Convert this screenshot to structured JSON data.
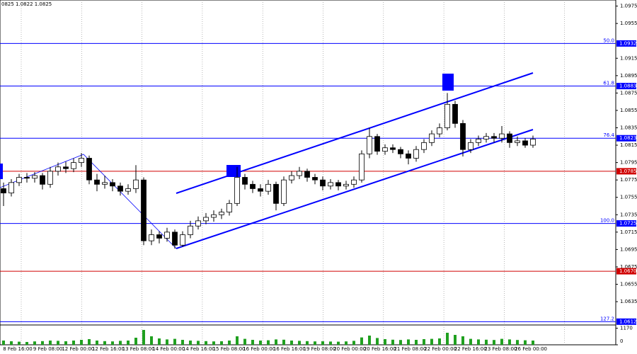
{
  "chart_data": {
    "type": "candlestick",
    "header": "0825 1.0822 1.0825",
    "ylim": [
      1.0609,
      1.0982
    ],
    "yticks": [
      1.0975,
      1.0955,
      1.0915,
      1.0895,
      1.0875,
      1.0855,
      1.0835,
      1.0815,
      1.0795,
      1.0775,
      1.0755,
      1.0735,
      1.0715,
      1.0695,
      1.0675,
      1.0655,
      1.0635
    ],
    "x_labels": [
      "8 Feb 16:00",
      "9 Feb 08:00",
      "12 Feb 00:00",
      "12 Feb 16:00",
      "13 Feb 08:00",
      "14 Feb 00:00",
      "14 Feb 16:00",
      "15 Feb 08:00",
      "16 Feb 00:00",
      "16 Feb 16:00",
      "19 Feb 08:00",
      "20 Feb 00:00",
      "20 Feb 16:00",
      "21 Feb 08:00",
      "22 Feb 00:00",
      "22 Feb 16:00",
      "23 Feb 08:00",
      "26 Feb 00:00"
    ],
    "levels": [
      {
        "ratio": "50.0",
        "price": 1.0932,
        "color": "#0000ff"
      },
      {
        "ratio": "61.8",
        "price": 1.0883,
        "color": "#0000ff"
      },
      {
        "ratio": "76.4",
        "price": 1.0823,
        "color": "#0000ff"
      },
      {
        "price": 1.0785,
        "color": "#d00000"
      },
      {
        "ratio": "100.0",
        "price": 1.0725,
        "color": "#0000ff"
      },
      {
        "price": {
          "value": 1.067,
          "label": "1.0670"
        },
        "color": "#d00000"
      },
      {
        "ratio": "127.2",
        "price": 1.0612,
        "color": "#0000ff"
      }
    ],
    "ohlc": [
      [
        1.0765,
        1.0772,
        1.0745,
        1.076
      ],
      [
        1.076,
        1.0776,
        1.0756,
        1.0772
      ],
      [
        1.0772,
        1.0782,
        1.0768,
        1.0778
      ],
      [
        1.0778,
        1.0783,
        1.0772,
        1.0777
      ],
      [
        1.0777,
        1.0784,
        1.0772,
        1.078
      ],
      [
        1.078,
        1.0783,
        1.0764,
        1.077
      ],
      [
        1.077,
        1.079,
        1.0766,
        1.0785
      ],
      [
        1.0785,
        1.0795,
        1.078,
        1.079
      ],
      [
        1.079,
        1.0796,
        1.0783,
        1.0788
      ],
      [
        1.0788,
        1.08,
        1.0784,
        1.0795
      ],
      [
        1.0795,
        1.0806,
        1.079,
        1.08
      ],
      [
        1.08,
        1.0803,
        1.077,
        1.0775
      ],
      [
        1.0775,
        1.0782,
        1.0762,
        1.077
      ],
      [
        1.077,
        1.078,
        1.0765,
        1.0772
      ],
      [
        1.0772,
        1.0776,
        1.0762,
        1.0768
      ],
      [
        1.0768,
        1.0772,
        1.0757,
        1.0762
      ],
      [
        1.0762,
        1.077,
        1.0758,
        1.0765
      ],
      [
        1.0765,
        1.0792,
        1.076,
        1.0775
      ],
      [
        1.0775,
        1.0778,
        1.07,
        1.0705
      ],
      [
        1.0705,
        1.0718,
        1.07,
        1.0712
      ],
      [
        1.0712,
        1.0716,
        1.0702,
        1.0708
      ],
      [
        1.0708,
        1.072,
        1.0704,
        1.0715
      ],
      [
        1.0715,
        1.0718,
        1.0696,
        1.07
      ],
      [
        1.07,
        1.0716,
        1.0698,
        1.0712
      ],
      [
        1.0712,
        1.0728,
        1.0708,
        1.0722
      ],
      [
        1.0722,
        1.0733,
        1.0718,
        1.0728
      ],
      [
        1.0728,
        1.0737,
        1.0724,
        1.0732
      ],
      [
        1.0732,
        1.074,
        1.0727,
        1.0735
      ],
      [
        1.0735,
        1.0742,
        1.073,
        1.0738
      ],
      [
        1.0738,
        1.0752,
        1.0734,
        1.0748
      ],
      [
        1.0748,
        1.079,
        1.0745,
        1.0778
      ],
      [
        1.0778,
        1.0782,
        1.0764,
        1.077
      ],
      [
        1.077,
        1.0774,
        1.076,
        1.0765
      ],
      [
        1.0765,
        1.077,
        1.0756,
        1.0762
      ],
      [
        1.0762,
        1.0775,
        1.0758,
        1.077
      ],
      [
        1.077,
        1.0773,
        1.074,
        1.0748
      ],
      [
        1.0748,
        1.0779,
        1.0745,
        1.0775
      ],
      [
        1.0775,
        1.0785,
        1.0771,
        1.078
      ],
      [
        1.078,
        1.079,
        1.0776,
        1.0785
      ],
      [
        1.0785,
        1.0788,
        1.0773,
        1.0778
      ],
      [
        1.0778,
        1.0782,
        1.077,
        1.0775
      ],
      [
        1.0775,
        1.0779,
        1.0763,
        1.0768
      ],
      [
        1.0768,
        1.0776,
        1.0764,
        1.0772
      ],
      [
        1.0772,
        1.0775,
        1.0763,
        1.0768
      ],
      [
        1.0768,
        1.0774,
        1.0764,
        1.077
      ],
      [
        1.077,
        1.0779,
        1.0766,
        1.0775
      ],
      [
        1.0775,
        1.0809,
        1.0772,
        1.0805
      ],
      [
        1.0805,
        1.0835,
        1.08,
        1.0825
      ],
      [
        1.0825,
        1.0828,
        1.0804,
        1.0808
      ],
      [
        1.0808,
        1.0816,
        1.0804,
        1.0812
      ],
      [
        1.0812,
        1.0816,
        1.0806,
        1.081
      ],
      [
        1.081,
        1.0813,
        1.08,
        1.0805
      ],
      [
        1.0805,
        1.0809,
        1.0793,
        1.08
      ],
      [
        1.08,
        1.0814,
        1.0796,
        1.081
      ],
      [
        1.081,
        1.0822,
        1.0806,
        1.0818
      ],
      [
        1.0818,
        1.0832,
        1.0814,
        1.0828
      ],
      [
        1.0828,
        1.084,
        1.0824,
        1.0835
      ],
      [
        1.0835,
        1.0875,
        1.0832,
        1.0862
      ],
      [
        1.0862,
        1.0866,
        1.0835,
        1.084
      ],
      [
        1.084,
        1.0844,
        1.0802,
        1.081
      ],
      [
        1.081,
        1.0822,
        1.0806,
        1.0818
      ],
      [
        1.0818,
        1.0826,
        1.0814,
        1.0822
      ],
      [
        1.0822,
        1.0829,
        1.0818,
        1.0825
      ],
      [
        1.0825,
        1.0829,
        1.0818,
        1.0823
      ],
      [
        1.0823,
        1.0837,
        1.0818,
        1.0828
      ],
      [
        1.0828,
        1.0831,
        1.0812,
        1.0818
      ],
      [
        1.0818,
        1.0825,
        1.0814,
        1.082
      ],
      [
        1.082,
        1.0823,
        1.0812,
        1.0815
      ],
      [
        1.0815,
        1.0826,
        1.0812,
        1.0822
      ]
    ],
    "volume": [
      300,
      250,
      220,
      200,
      240,
      260,
      300,
      280,
      250,
      300,
      350,
      400,
      300,
      260,
      240,
      280,
      300,
      500,
      1050,
      600,
      450,
      380,
      420,
      350,
      300,
      280,
      260,
      240,
      250,
      300,
      600,
      420,
      350,
      300,
      320,
      380,
      360,
      300,
      280,
      260,
      240,
      250,
      230,
      220,
      240,
      280,
      520,
      650,
      480,
      400,
      360,
      340,
      380,
      350,
      400,
      420,
      450,
      850,
      700,
      600,
      420,
      380,
      360,
      340,
      420,
      380,
      340,
      320,
      300
    ],
    "vlim": [
      0,
      1300
    ],
    "vticks": [
      0,
      1170
    ]
  }
}
